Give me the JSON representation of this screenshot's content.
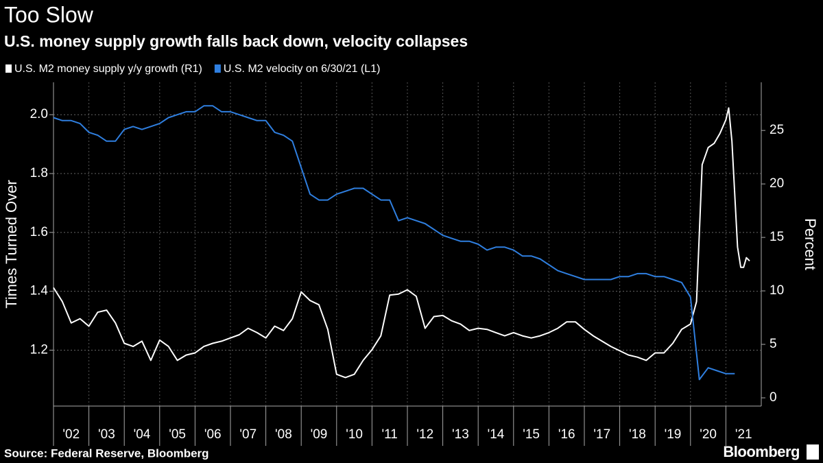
{
  "chart_data": {
    "type": "line",
    "title": "Too Slow",
    "subtitle": "U.S. money supply growth falls back down, velocity collapses",
    "ylabel": "Times Turned Over",
    "y2label": "Percent",
    "source": "Source: Federal Reserve, Bloomberg",
    "brand": "Bloomberg",
    "xlim": [
      2002,
      2022
    ],
    "xticks": [
      {
        "value": 2002.5,
        "label": "'02"
      },
      {
        "value": 2003.5,
        "label": "'03"
      },
      {
        "value": 2004.5,
        "label": "'04"
      },
      {
        "value": 2005.5,
        "label": "'05"
      },
      {
        "value": 2006.5,
        "label": "'06"
      },
      {
        "value": 2007.5,
        "label": "'07"
      },
      {
        "value": 2008.5,
        "label": "'08"
      },
      {
        "value": 2009.5,
        "label": "'09"
      },
      {
        "value": 2010.5,
        "label": "'10"
      },
      {
        "value": 2011.5,
        "label": "'11"
      },
      {
        "value": 2012.5,
        "label": "'12"
      },
      {
        "value": 2013.5,
        "label": "'13"
      },
      {
        "value": 2014.5,
        "label": "'14"
      },
      {
        "value": 2015.5,
        "label": "'15"
      },
      {
        "value": 2016.5,
        "label": "'16"
      },
      {
        "value": 2017.5,
        "label": "'17"
      },
      {
        "value": 2018.5,
        "label": "'18"
      },
      {
        "value": 2019.5,
        "label": "'19"
      },
      {
        "value": 2020.5,
        "label": "'20"
      },
      {
        "value": 2021.5,
        "label": "'21"
      }
    ],
    "ylim": [
      1.01,
      2.11
    ],
    "yticks": [
      1.2,
      1.4,
      1.6,
      1.8,
      {
        "value": 2.0,
        "label": "2.0"
      }
    ],
    "y2lim": [
      -0.77,
      29.5
    ],
    "y2ticks": [
      0,
      5,
      10,
      15,
      20,
      25
    ],
    "grid": true,
    "background": "#000000",
    "series": [
      {
        "name": "U.S. M2 money supply y/y growth (R1)",
        "color": "#ffffff",
        "axis": "y2",
        "x": [
          2002,
          2002.25,
          2002.5,
          2002.75,
          2003,
          2003.25,
          2003.5,
          2003.75,
          2004,
          2004.25,
          2004.5,
          2004.75,
          2005,
          2005.25,
          2005.5,
          2005.75,
          2006,
          2006.25,
          2006.5,
          2006.75,
          2007,
          2007.25,
          2007.5,
          2007.75,
          2008,
          2008.25,
          2008.5,
          2008.75,
          2009,
          2009.25,
          2009.5,
          2009.75,
          2010,
          2010.25,
          2010.5,
          2010.75,
          2011,
          2011.25,
          2011.5,
          2011.75,
          2012,
          2012.25,
          2012.5,
          2012.75,
          2013,
          2013.25,
          2013.5,
          2013.75,
          2014,
          2014.25,
          2014.5,
          2014.75,
          2015,
          2015.25,
          2015.5,
          2015.75,
          2016,
          2016.25,
          2016.5,
          2016.75,
          2017,
          2017.25,
          2017.5,
          2017.75,
          2018,
          2018.25,
          2018.5,
          2018.75,
          2019,
          2019.25,
          2019.5,
          2019.75,
          2020,
          2020.17,
          2020.33,
          2020.5,
          2020.67,
          2020.83,
          2021,
          2021.08,
          2021.17,
          2021.33,
          2021.42,
          2021.5,
          2021.58,
          2021.67
        ],
        "values": [
          10.3,
          9.0,
          7.0,
          7.4,
          6.7,
          8.0,
          8.2,
          7.0,
          5.1,
          4.8,
          5.3,
          3.5,
          5.4,
          4.8,
          3.5,
          4.0,
          4.2,
          4.8,
          5.1,
          5.3,
          5.6,
          5.9,
          6.5,
          6.1,
          5.6,
          6.7,
          6.3,
          7.4,
          9.9,
          9.1,
          8.7,
          6.4,
          2.2,
          1.9,
          2.2,
          3.5,
          4.5,
          5.8,
          9.6,
          9.7,
          10.1,
          9.5,
          6.5,
          7.6,
          7.7,
          7.2,
          6.9,
          6.3,
          6.5,
          6.4,
          6.1,
          5.8,
          6.1,
          5.8,
          5.6,
          5.8,
          6.1,
          6.5,
          7.1,
          7.1,
          6.4,
          5.8,
          5.3,
          4.8,
          4.4,
          4.0,
          3.8,
          3.5,
          4.2,
          4.2,
          5.1,
          6.4,
          6.9,
          9.0,
          21.8,
          23.4,
          23.8,
          24.7,
          26.0,
          27.1,
          24.0,
          14.1,
          12.2,
          12.2,
          13.1,
          12.8
        ]
      },
      {
        "name": "U.S. M2 velocity on 6/30/21 (L1)",
        "color": "#2f7fe0",
        "x": [
          2002,
          2002.25,
          2002.5,
          2002.75,
          2003,
          2003.25,
          2003.5,
          2003.75,
          2004,
          2004.25,
          2004.5,
          2004.75,
          2005,
          2005.25,
          2005.5,
          2005.75,
          2006,
          2006.25,
          2006.5,
          2006.75,
          2007,
          2007.25,
          2007.5,
          2007.75,
          2008,
          2008.25,
          2008.5,
          2008.75,
          2009,
          2009.25,
          2009.5,
          2009.75,
          2010,
          2010.25,
          2010.5,
          2010.75,
          2011,
          2011.25,
          2011.5,
          2011.75,
          2012,
          2012.25,
          2012.5,
          2012.75,
          2013,
          2013.25,
          2013.5,
          2013.75,
          2014,
          2014.25,
          2014.5,
          2014.75,
          2015,
          2015.25,
          2015.5,
          2015.75,
          2016,
          2016.25,
          2016.5,
          2016.75,
          2017,
          2017.25,
          2017.5,
          2017.75,
          2018,
          2018.25,
          2018.5,
          2018.75,
          2019,
          2019.25,
          2019.5,
          2019.75,
          2020,
          2020.25,
          2020.5,
          2020.75,
          2021,
          2021.25
        ],
        "values": [
          1.99,
          1.98,
          1.98,
          1.97,
          1.94,
          1.93,
          1.91,
          1.91,
          1.95,
          1.96,
          1.95,
          1.96,
          1.97,
          1.99,
          2.0,
          2.01,
          2.01,
          2.03,
          2.03,
          2.01,
          2.01,
          2.0,
          1.99,
          1.98,
          1.98,
          1.94,
          1.93,
          1.91,
          1.82,
          1.73,
          1.71,
          1.71,
          1.73,
          1.74,
          1.75,
          1.75,
          1.73,
          1.71,
          1.71,
          1.64,
          1.65,
          1.64,
          1.63,
          1.61,
          1.59,
          1.58,
          1.57,
          1.57,
          1.56,
          1.54,
          1.55,
          1.55,
          1.54,
          1.52,
          1.52,
          1.51,
          1.49,
          1.47,
          1.46,
          1.45,
          1.44,
          1.44,
          1.44,
          1.44,
          1.45,
          1.45,
          1.46,
          1.46,
          1.45,
          1.45,
          1.44,
          1.43,
          1.38,
          1.1,
          1.14,
          1.13,
          1.12,
          1.12
        ]
      }
    ]
  }
}
